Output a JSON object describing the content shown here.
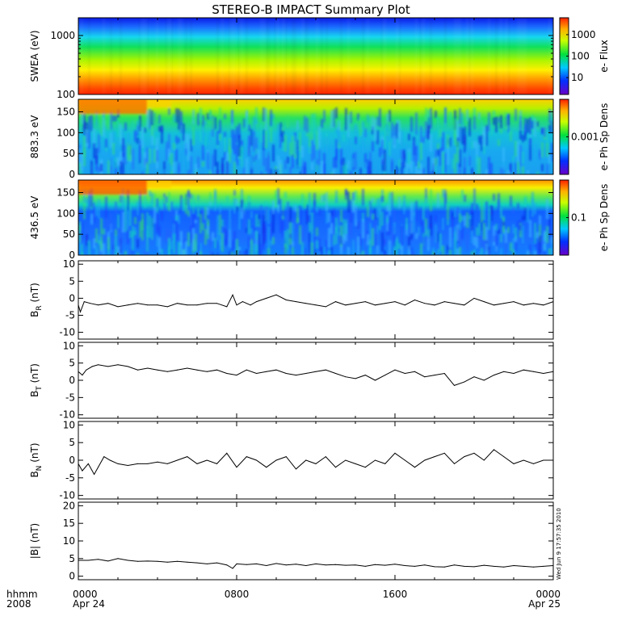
{
  "title": "STEREO-B IMPACT Summary Plot",
  "stamp": "Wed Jun 9 17:57:35 2010",
  "x_axis": {
    "row1_label": "hhmm",
    "row2_label": "2008",
    "ticks": [
      {
        "x": 0,
        "time": "0000",
        "date": "Apr 24"
      },
      {
        "x": 8,
        "time": "0800",
        "date": ""
      },
      {
        "x": 16,
        "time": "1600",
        "date": ""
      },
      {
        "x": 24,
        "time": "0000",
        "date": "Apr 25"
      }
    ],
    "range_hours": [
      0,
      24
    ]
  },
  "chart_data": [
    {
      "type": "heatmap",
      "ylabel": "SWEA (eV)",
      "yscale": "log",
      "ylim": [
        100,
        2000
      ],
      "yticks": [
        100,
        1000
      ],
      "colorbar": {
        "label": "e- Flux",
        "scale": "log",
        "ticks": [
          10,
          100,
          1000
        ]
      },
      "description_rows": [
        {
          "energy": 1500,
          "level": "blue"
        },
        {
          "energy": 1000,
          "level": "cyan"
        },
        {
          "energy": 600,
          "level": "green"
        },
        {
          "energy": 350,
          "level": "yellow"
        },
        {
          "energy": 150,
          "level": "red"
        }
      ]
    },
    {
      "type": "heatmap",
      "ylabel": "883.3 eV",
      "ylim": [
        0,
        180
      ],
      "yticks": [
        0,
        50,
        100,
        150
      ],
      "colorbar": {
        "label": "e- Ph Sp Dens",
        "scale": "log",
        "ticks": [
          0.001
        ]
      }
    },
    {
      "type": "heatmap",
      "ylabel": "436.5 eV",
      "ylim": [
        0,
        180
      ],
      "yticks": [
        0,
        50,
        100,
        150
      ],
      "colorbar": {
        "label": "e- Ph Sp Dens",
        "scale": "log",
        "ticks": [
          0.1
        ]
      }
    },
    {
      "type": "line",
      "ylabel": "B",
      "ylabel_sub": "R",
      "ylabel_unit": "(nT)",
      "ylim": [
        -12,
        11
      ],
      "yticks": [
        -10,
        -5,
        0,
        5,
        10
      ],
      "x": [
        0,
        0.1,
        0.3,
        0.6,
        1,
        1.5,
        2,
        2.5,
        3,
        3.5,
        4,
        4.5,
        5,
        5.5,
        6,
        6.5,
        7,
        7.5,
        7.8,
        8,
        8.3,
        8.7,
        9,
        9.5,
        10,
        10.5,
        11,
        11.5,
        12,
        12.5,
        13,
        13.5,
        14,
        14.5,
        15,
        15.5,
        16,
        16.5,
        17,
        17.5,
        18,
        18.5,
        19,
        19.5,
        20,
        20.5,
        21,
        21.5,
        22,
        22.5,
        23,
        23.5,
        24
      ],
      "y": [
        -2,
        -4,
        -1,
        -1.5,
        -2,
        -1.5,
        -2.5,
        -2,
        -1.5,
        -2,
        -2,
        -2.5,
        -1.5,
        -2,
        -2,
        -1.5,
        -1.5,
        -2.5,
        1,
        -2,
        -1,
        -2,
        -1,
        0,
        1,
        -0.5,
        -1,
        -1.5,
        -2,
        -2.5,
        -1,
        -2,
        -1.5,
        -1,
        -2,
        -1.5,
        -1,
        -2,
        -0.5,
        -1.5,
        -2,
        -1,
        -1.5,
        -2,
        0,
        -1,
        -2,
        -1.5,
        -1,
        -2,
        -1.5,
        -2,
        -1
      ]
    },
    {
      "type": "line",
      "ylabel": "B",
      "ylabel_sub": "T",
      "ylabel_unit": "(nT)",
      "ylim": [
        -11,
        11
      ],
      "yticks": [
        -10,
        -5,
        0,
        5,
        10
      ],
      "x": [
        0,
        0.2,
        0.4,
        0.7,
        1,
        1.5,
        2,
        2.5,
        3,
        3.5,
        4,
        4.5,
        5,
        5.5,
        6,
        6.5,
        7,
        7.5,
        8,
        8.5,
        9,
        9.5,
        10,
        10.5,
        11,
        11.5,
        12,
        12.5,
        13,
        13.5,
        14,
        14.5,
        15,
        15.5,
        16,
        16.5,
        17,
        17.5,
        18,
        18.5,
        19,
        19.5,
        20,
        20.5,
        21,
        21.5,
        22,
        22.5,
        23,
        23.5,
        24
      ],
      "y": [
        2.5,
        1.5,
        3,
        4,
        4.5,
        4,
        4.5,
        4,
        3,
        3.5,
        3,
        2.5,
        3,
        3.5,
        3,
        2.5,
        3,
        2,
        1.5,
        3,
        2,
        2.5,
        3,
        2,
        1.5,
        2,
        2.5,
        3,
        2,
        1,
        0.5,
        1.5,
        0,
        1.5,
        3,
        2,
        2.5,
        1,
        1.5,
        2,
        -1.5,
        -0.5,
        1,
        0,
        1.5,
        2.5,
        2,
        3,
        2.5,
        2,
        2.5
      ]
    },
    {
      "type": "line",
      "ylabel": "B",
      "ylabel_sub": "N",
      "ylabel_unit": "(nT)",
      "ylim": [
        -11,
        11
      ],
      "yticks": [
        -10,
        -5,
        0,
        5,
        10
      ],
      "x": [
        0,
        0.2,
        0.5,
        0.8,
        1,
        1.3,
        1.6,
        2,
        2.5,
        3,
        3.5,
        4,
        4.5,
        5,
        5.5,
        6,
        6.5,
        7,
        7.5,
        8,
        8.5,
        9,
        9.5,
        10,
        10.5,
        11,
        11.5,
        12,
        12.5,
        13,
        13.5,
        14,
        14.5,
        15,
        15.5,
        16,
        16.5,
        17,
        17.5,
        18,
        18.5,
        19,
        19.5,
        20,
        20.5,
        21,
        21.5,
        22,
        22.5,
        23,
        23.5,
        24
      ],
      "y": [
        -1,
        -3,
        -1,
        -4,
        -2,
        1,
        0,
        -1,
        -1.5,
        -1,
        -1,
        -0.5,
        -1,
        0,
        1,
        -1,
        0,
        -1,
        2,
        -2,
        1,
        0,
        -2,
        0,
        1,
        -2.5,
        0,
        -1,
        1,
        -2,
        0,
        -1,
        -2,
        0,
        -1,
        2,
        0,
        -2,
        0,
        1,
        2,
        -1,
        1,
        2,
        0,
        3,
        1,
        -1,
        0,
        -1,
        0,
        0
      ]
    },
    {
      "type": "line",
      "ylabel": "|B|",
      "ylabel_unit": "(nT)",
      "ylim": [
        -1,
        21
      ],
      "yticks": [
        0,
        5,
        10,
        15,
        20
      ],
      "x": [
        0,
        0.5,
        1,
        1.5,
        2,
        2.5,
        3,
        3.5,
        4,
        4.5,
        5,
        5.5,
        6,
        6.5,
        7,
        7.5,
        7.8,
        8,
        8.5,
        9,
        9.5,
        10,
        10.5,
        11,
        11.5,
        12,
        12.5,
        13,
        13.5,
        14,
        14.5,
        15,
        15.5,
        16,
        16.5,
        17,
        17.5,
        18,
        18.5,
        19,
        19.5,
        20,
        20.5,
        21,
        21.5,
        22,
        22.5,
        23,
        23.5,
        24
      ],
      "y": [
        4.5,
        4.5,
        4.8,
        4.3,
        5,
        4.5,
        4.2,
        4.3,
        4.2,
        4,
        4.2,
        4,
        3.8,
        3.5,
        3.8,
        3.2,
        2.2,
        3.5,
        3.3,
        3.5,
        3,
        3.6,
        3.2,
        3.4,
        3,
        3.5,
        3.2,
        3.3,
        3.1,
        3.2,
        2.8,
        3.3,
        3.1,
        3.4,
        3,
        2.8,
        3.2,
        2.7,
        2.6,
        3.2,
        2.8,
        2.7,
        3.1,
        2.8,
        2.6,
        3,
        2.8,
        2.6,
        2.8,
        3
      ]
    }
  ]
}
